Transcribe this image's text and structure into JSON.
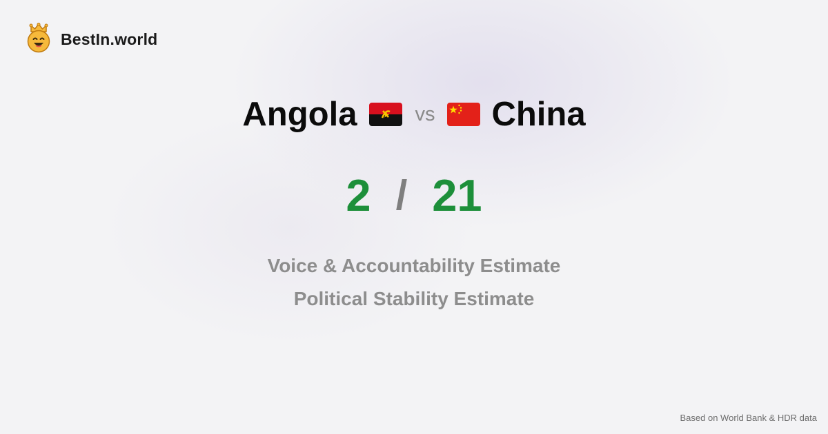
{
  "brand": {
    "name": "BestIn.world",
    "logo_icon": "crown-smiley-icon"
  },
  "comparison": {
    "left_country": "Angola",
    "left_flag": "angola-flag-icon",
    "vs_label": "vs",
    "right_country": "China",
    "right_flag": "china-flag-icon"
  },
  "scores": {
    "left": "2",
    "separator": "/",
    "right": "21"
  },
  "metrics": [
    "Voice & Accountability Estimate",
    "Political Stability Estimate"
  ],
  "footer": {
    "source": "Based on World Bank & HDR data"
  },
  "colors": {
    "score": "#1d8f3a",
    "muted": "#8d8d8d",
    "logo": "#f6b93b"
  }
}
